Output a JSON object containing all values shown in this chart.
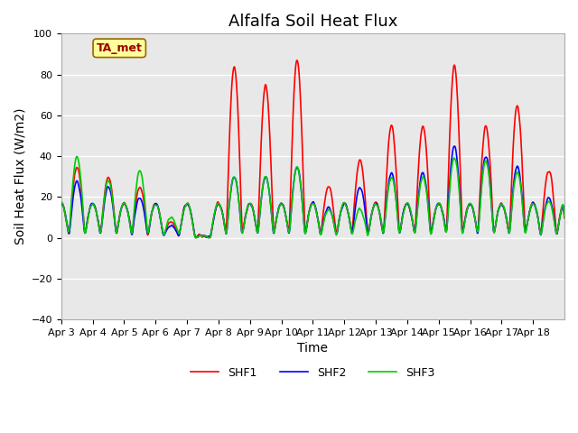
{
  "title": "Alfalfa Soil Heat Flux",
  "xlabel": "Time",
  "ylabel": "Soil Heat Flux (W/m2)",
  "ylim": [
    -40,
    100
  ],
  "shf1_color": "#ff0000",
  "shf2_color": "#0000ff",
  "shf3_color": "#00cc00",
  "legend_labels": [
    "SHF1",
    "SHF2",
    "SHF3"
  ],
  "annotation_text": "TA_met",
  "annotation_box_color": "#ffff99",
  "annotation_text_color": "#990000",
  "background_inner": "#e8e8e8",
  "background_outer": "#ffffff",
  "grid_color": "#ffffff",
  "x_tick_labels": [
    "Apr 3",
    "Apr 4",
    "Apr 5",
    "Apr 6",
    "Apr 7",
    "Apr 8",
    "Apr 9",
    "Apr 10",
    "Apr 11",
    "Apr 12",
    "Apr 13",
    "Apr 14",
    "Apr 15",
    "Apr 16",
    "Apr 17",
    "Apr 18"
  ],
  "yticks": [
    -40,
    -20,
    0,
    20,
    40,
    60,
    80,
    100
  ],
  "title_fontsize": 13,
  "axis_label_fontsize": 10,
  "tick_fontsize": 8
}
